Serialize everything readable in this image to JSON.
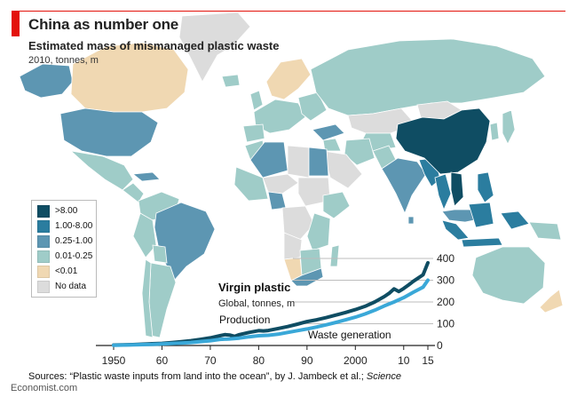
{
  "header": {
    "title": "China as number one",
    "subtitle": "Estimated mass of mismanaged plastic waste",
    "units": "2010, tonnes, m"
  },
  "legend": {
    "items": [
      {
        "label": ">8.00",
        "color": "#0f4d63"
      },
      {
        "label": "1.00-8.00",
        "color": "#2b7d9f"
      },
      {
        "label": "0.25-1.00",
        "color": "#5d96b2"
      },
      {
        "label": "0.01-0.25",
        "color": "#9fccc8"
      },
      {
        "label": "<0.01",
        "color": "#f0d8b2"
      },
      {
        "label": "No data",
        "color": "#dcdcdc"
      }
    ]
  },
  "colors": {
    "ocean": "#ffffff",
    "production_line": "#0f4d63",
    "waste_line": "#3aa8d8",
    "accent_red": "#e3120b"
  },
  "chart_data": [
    {
      "type": "map",
      "title": "Estimated mass of mismanaged plastic waste",
      "regions": [
        {
          "name": "China",
          "category": ">8.00"
        },
        {
          "name": "Indonesia",
          "category": "1.00-8.00"
        },
        {
          "name": "Philippines",
          "category": "1.00-8.00"
        },
        {
          "name": "Vietnam",
          "category": "1.00-8.00"
        },
        {
          "name": "Thailand",
          "category": "1.00-8.00"
        },
        {
          "name": "United States",
          "category": "0.25-1.00"
        },
        {
          "name": "Brazil",
          "category": "0.25-1.00"
        },
        {
          "name": "India",
          "category": "0.25-1.00"
        },
        {
          "name": "Nigeria",
          "category": "0.25-1.00"
        },
        {
          "name": "Egypt",
          "category": "0.25-1.00"
        },
        {
          "name": "Algeria",
          "category": "0.25-1.00"
        },
        {
          "name": "Turkey",
          "category": "0.25-1.00"
        },
        {
          "name": "South Africa",
          "category": "0.25-1.00"
        },
        {
          "name": "Australia",
          "category": "0.01-0.25"
        },
        {
          "name": "Mexico",
          "category": "0.01-0.25"
        },
        {
          "name": "Canada",
          "category": "<0.01"
        },
        {
          "name": "Norway",
          "category": "<0.01"
        },
        {
          "name": "New Zealand",
          "category": "<0.01"
        },
        {
          "name": "Namibia",
          "category": "<0.01"
        },
        {
          "name": "Greenland",
          "category": "No data"
        },
        {
          "name": "Kazakhstan",
          "category": "No data"
        }
      ]
    },
    {
      "type": "line",
      "title": "Virgin plastic",
      "subtitle": "Global, tonnes, m",
      "x_tick_labels": [
        "1950",
        "60",
        "70",
        "80",
        "90",
        "2000",
        "10",
        "15"
      ],
      "x_tick_values": [
        1950,
        1960,
        1970,
        1980,
        1990,
        2000,
        2010,
        2015
      ],
      "y_ticks": [
        0,
        100,
        200,
        300,
        400
      ],
      "ylim": [
        0,
        400
      ],
      "xlim": [
        1950,
        2015
      ],
      "series": [
        {
          "name": "Production",
          "x": [
            1950,
            1952,
            1954,
            1956,
            1958,
            1960,
            1962,
            1964,
            1966,
            1968,
            1970,
            1972,
            1973,
            1974,
            1975,
            1976,
            1978,
            1980,
            1981,
            1982,
            1984,
            1986,
            1988,
            1990,
            1992,
            1994,
            1996,
            1998,
            2000,
            2002,
            2004,
            2006,
            2007,
            2008,
            2009,
            2010,
            2011,
            2012,
            2013,
            2014,
            2015
          ],
          "y": [
            2,
            3,
            4,
            6,
            8,
            10,
            13,
            17,
            22,
            28,
            35,
            45,
            50,
            48,
            42,
            50,
            60,
            68,
            67,
            69,
            78,
            87,
            98,
            110,
            118,
            128,
            140,
            152,
            165,
            180,
            200,
            225,
            240,
            260,
            248,
            262,
            278,
            295,
            310,
            325,
            380
          ]
        },
        {
          "name": "Waste generation",
          "x": [
            1950,
            1952,
            1954,
            1956,
            1958,
            1960,
            1962,
            1964,
            1966,
            1968,
            1970,
            1972,
            1974,
            1976,
            1978,
            1980,
            1982,
            1984,
            1986,
            1988,
            1990,
            1992,
            1994,
            1996,
            1998,
            2000,
            2002,
            2004,
            2006,
            2008,
            2010,
            2012,
            2014,
            2015
          ],
          "y": [
            1,
            2,
            3,
            4,
            5,
            7,
            9,
            11,
            14,
            18,
            22,
            28,
            30,
            34,
            40,
            45,
            47,
            52,
            60,
            68,
            76,
            85,
            95,
            106,
            118,
            130,
            145,
            162,
            182,
            200,
            220,
            245,
            268,
            300
          ]
        }
      ]
    }
  ],
  "footer": {
    "source_prefix": "Sources: “Plastic waste inputs from land into the ocean”, by J. Jambeck et al.;",
    "source_italic": "Science",
    "brand": "Economist.com"
  }
}
